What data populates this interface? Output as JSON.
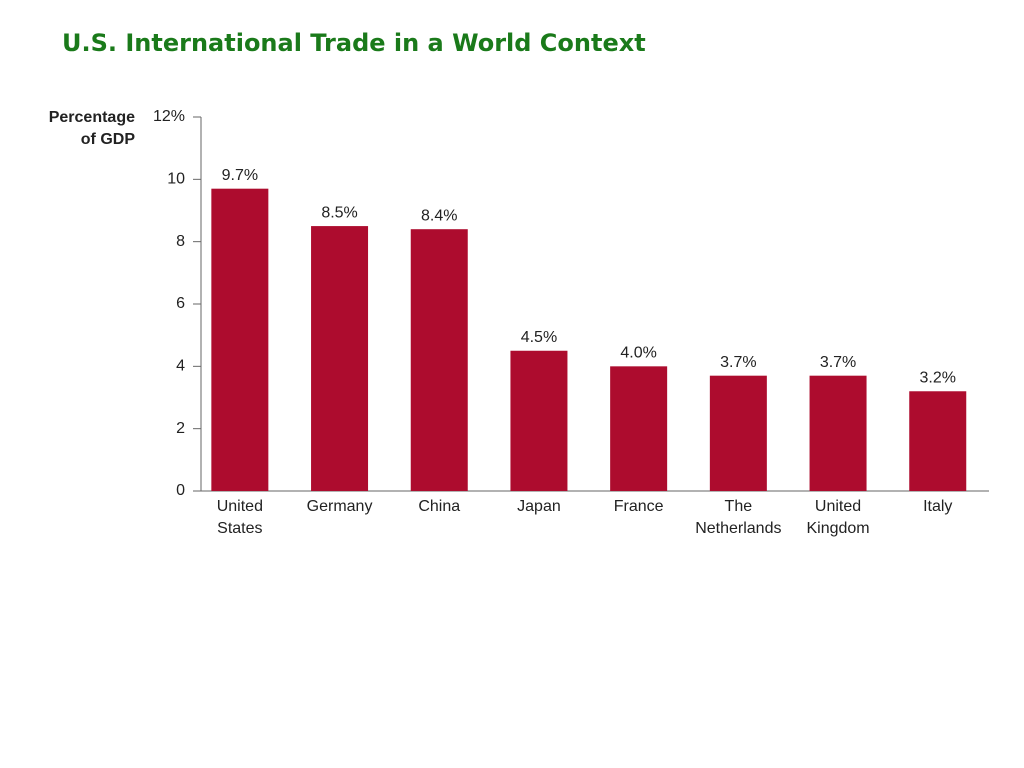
{
  "chart_data": {
    "type": "bar",
    "title": "U.S. International Trade in a World Context",
    "ylabel": [
      "Percentage",
      "of GDP"
    ],
    "categories": [
      "United States",
      "Germany",
      "China",
      "Japan",
      "France",
      "The Netherlands",
      "United Kingdom",
      "Italy"
    ],
    "values": [
      9.7,
      8.5,
      8.4,
      4.5,
      4.0,
      3.7,
      3.7,
      3.2
    ],
    "value_labels": [
      "9.7%",
      "8.5%",
      "8.4%",
      "4.5%",
      "4.0%",
      "3.7%",
      "3.7%",
      "3.2%"
    ],
    "color": "#ad0c2e",
    "ylim": [
      0,
      12
    ],
    "yticks": [
      0,
      2,
      4,
      6,
      8,
      10,
      {
        "value": 12,
        "label": "12%"
      }
    ],
    "grid": false
  }
}
